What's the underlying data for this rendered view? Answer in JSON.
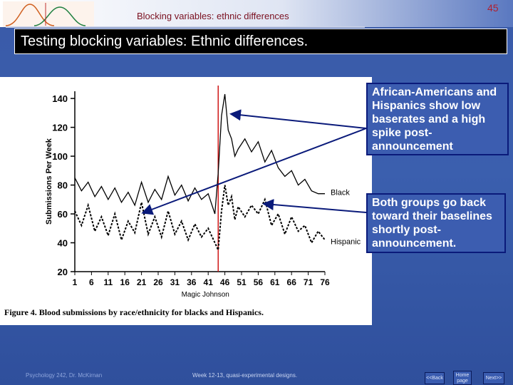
{
  "header": {
    "slide_title": "Blocking variables: ethnic differences",
    "slide_number": "45",
    "logo_icon": "normal-distribution-curves-logo"
  },
  "heading": "Testing blocking variables:  Ethnic differences.",
  "callouts": [
    "African-Americans and Hispanics show low baserates and a high spike post-announcement",
    "Both groups go back toward their baselines shortly post-announcement."
  ],
  "footer": {
    "course": "Psychology 242, Dr. McKirnan",
    "week": "Week 12-13, quasi-experimental designs."
  },
  "nav": {
    "back": "<<Back",
    "home": "Home page",
    "next": "Next>>"
  },
  "chart_data": {
    "type": "line",
    "caption": "Figure 4. Blood submissions by race/ethnicity for blacks and Hispanics.",
    "ylabel": "Submissions Per Week",
    "xlabel": "Magic Johnson",
    "ylim": [
      20,
      145
    ],
    "xlim": [
      1,
      76
    ],
    "yticks": [
      20,
      40,
      60,
      80,
      100,
      120,
      140
    ],
    "xticks": [
      1,
      6,
      11,
      16,
      21,
      26,
      31,
      36,
      41,
      46,
      51,
      56,
      61,
      66,
      71,
      76
    ],
    "announcement_week": 44,
    "series": [
      {
        "name": "Black",
        "style": "solid",
        "x": [
          1,
          3,
          5,
          7,
          9,
          11,
          13,
          15,
          17,
          19,
          21,
          23,
          25,
          27,
          29,
          31,
          33,
          35,
          37,
          39,
          41,
          43,
          44,
          45,
          46,
          47,
          48,
          49,
          50,
          52,
          54,
          56,
          58,
          60,
          62,
          64,
          66,
          68,
          70,
          72,
          74,
          76
        ],
        "y": [
          85,
          76,
          82,
          72,
          79,
          70,
          78,
          68,
          75,
          66,
          82,
          68,
          77,
          70,
          86,
          73,
          80,
          69,
          78,
          70,
          74,
          60,
          88,
          128,
          143,
          118,
          112,
          100,
          105,
          112,
          103,
          110,
          96,
          104,
          92,
          86,
          90,
          80,
          84,
          76,
          74,
          74
        ]
      },
      {
        "name": "Hispanic",
        "style": "dashed",
        "x": [
          1,
          3,
          5,
          7,
          9,
          11,
          13,
          15,
          17,
          19,
          21,
          23,
          25,
          27,
          29,
          31,
          33,
          35,
          37,
          39,
          41,
          43,
          44,
          45,
          46,
          47,
          48,
          49,
          50,
          52,
          54,
          56,
          58,
          60,
          62,
          64,
          66,
          68,
          70,
          72,
          74,
          76
        ],
        "y": [
          62,
          52,
          66,
          48,
          58,
          45,
          60,
          42,
          55,
          47,
          68,
          46,
          58,
          44,
          62,
          46,
          55,
          42,
          53,
          44,
          50,
          40,
          35,
          62,
          80,
          66,
          72,
          56,
          65,
          58,
          66,
          60,
          70,
          52,
          60,
          46,
          58,
          48,
          52,
          40,
          48,
          42
        ]
      }
    ]
  }
}
